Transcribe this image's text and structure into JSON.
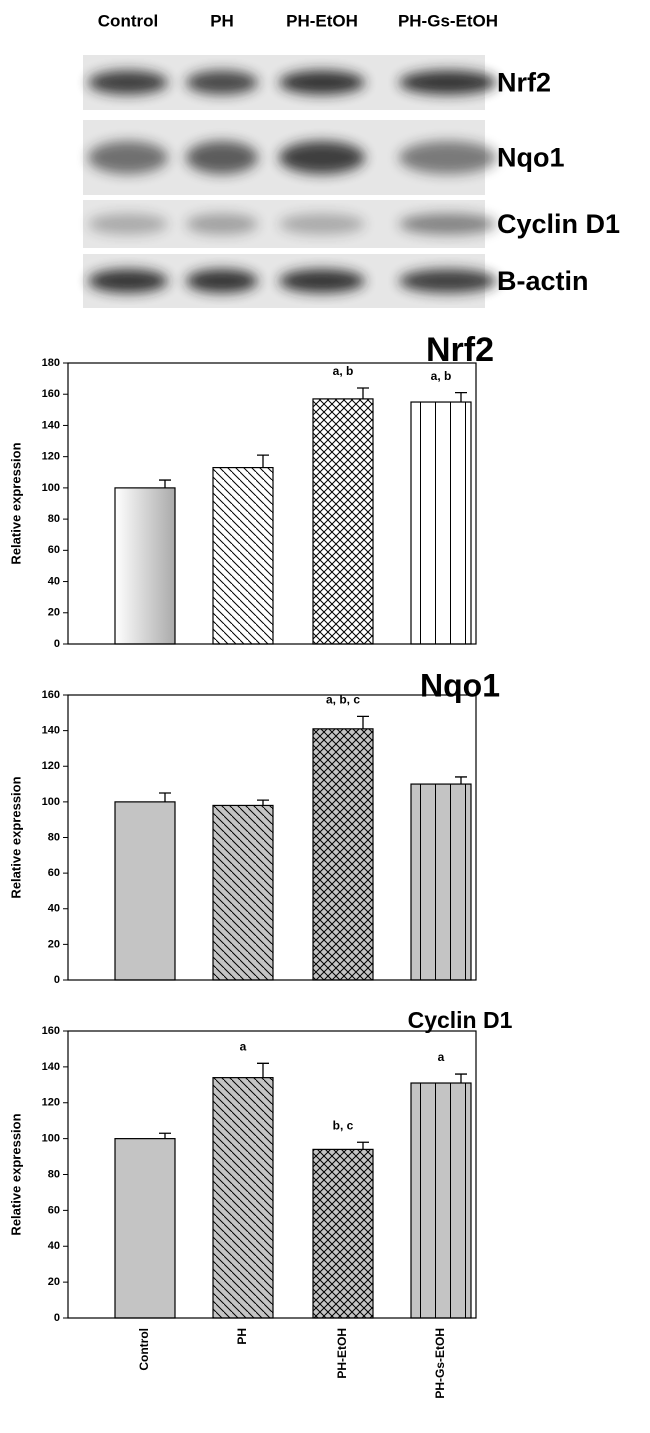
{
  "blot": {
    "lanes": [
      "Control",
      "PH",
      "PH-EtOH",
      "PH-Gs-EtOH"
    ],
    "proteins": [
      "Nrf2",
      "Nqo1",
      "Cyclin D1",
      "B-actin"
    ]
  },
  "chart_data": [
    {
      "type": "bar",
      "title": "Nrf2",
      "y_label": "Relative expression",
      "categories": [
        null,
        null,
        null,
        null
      ],
      "values": [
        100,
        113,
        157,
        155
      ],
      "errors": [
        5,
        8,
        7,
        6
      ],
      "annotations": [
        null,
        null,
        "a, b",
        "a, b"
      ],
      "color": "#ffffff",
      "ylim": [
        0,
        180
      ],
      "yticks": [
        0,
        20,
        40,
        60,
        80,
        100,
        120,
        140,
        160,
        180
      ]
    },
    {
      "type": "bar",
      "title": "Nqo1",
      "y_label": "Relative expression",
      "categories": [
        null,
        null,
        null,
        null
      ],
      "values": [
        100,
        98,
        141,
        110
      ],
      "errors": [
        5,
        3,
        7,
        4
      ],
      "annotations": [
        null,
        null,
        "a, b, c",
        null
      ],
      "color": "#c4c4c4",
      "ylim": [
        0,
        160
      ],
      "yticks": [
        0,
        20,
        40,
        60,
        80,
        100,
        120,
        140,
        160
      ]
    },
    {
      "type": "bar",
      "title": "Cyclin D1",
      "y_label": "Relative expression",
      "categories": [
        "Control",
        "PH",
        "PH-EtOH",
        "PH-Gs-EtOH"
      ],
      "values": [
        100,
        134,
        94,
        131
      ],
      "errors": [
        3,
        8,
        4,
        5
      ],
      "annotations": [
        null,
        "a",
        "b, c",
        "a"
      ],
      "color": "#c4c4c4",
      "ylim": [
        0,
        160
      ],
      "yticks": [
        0,
        20,
        40,
        60,
        80,
        100,
        120,
        140,
        160
      ]
    }
  ]
}
